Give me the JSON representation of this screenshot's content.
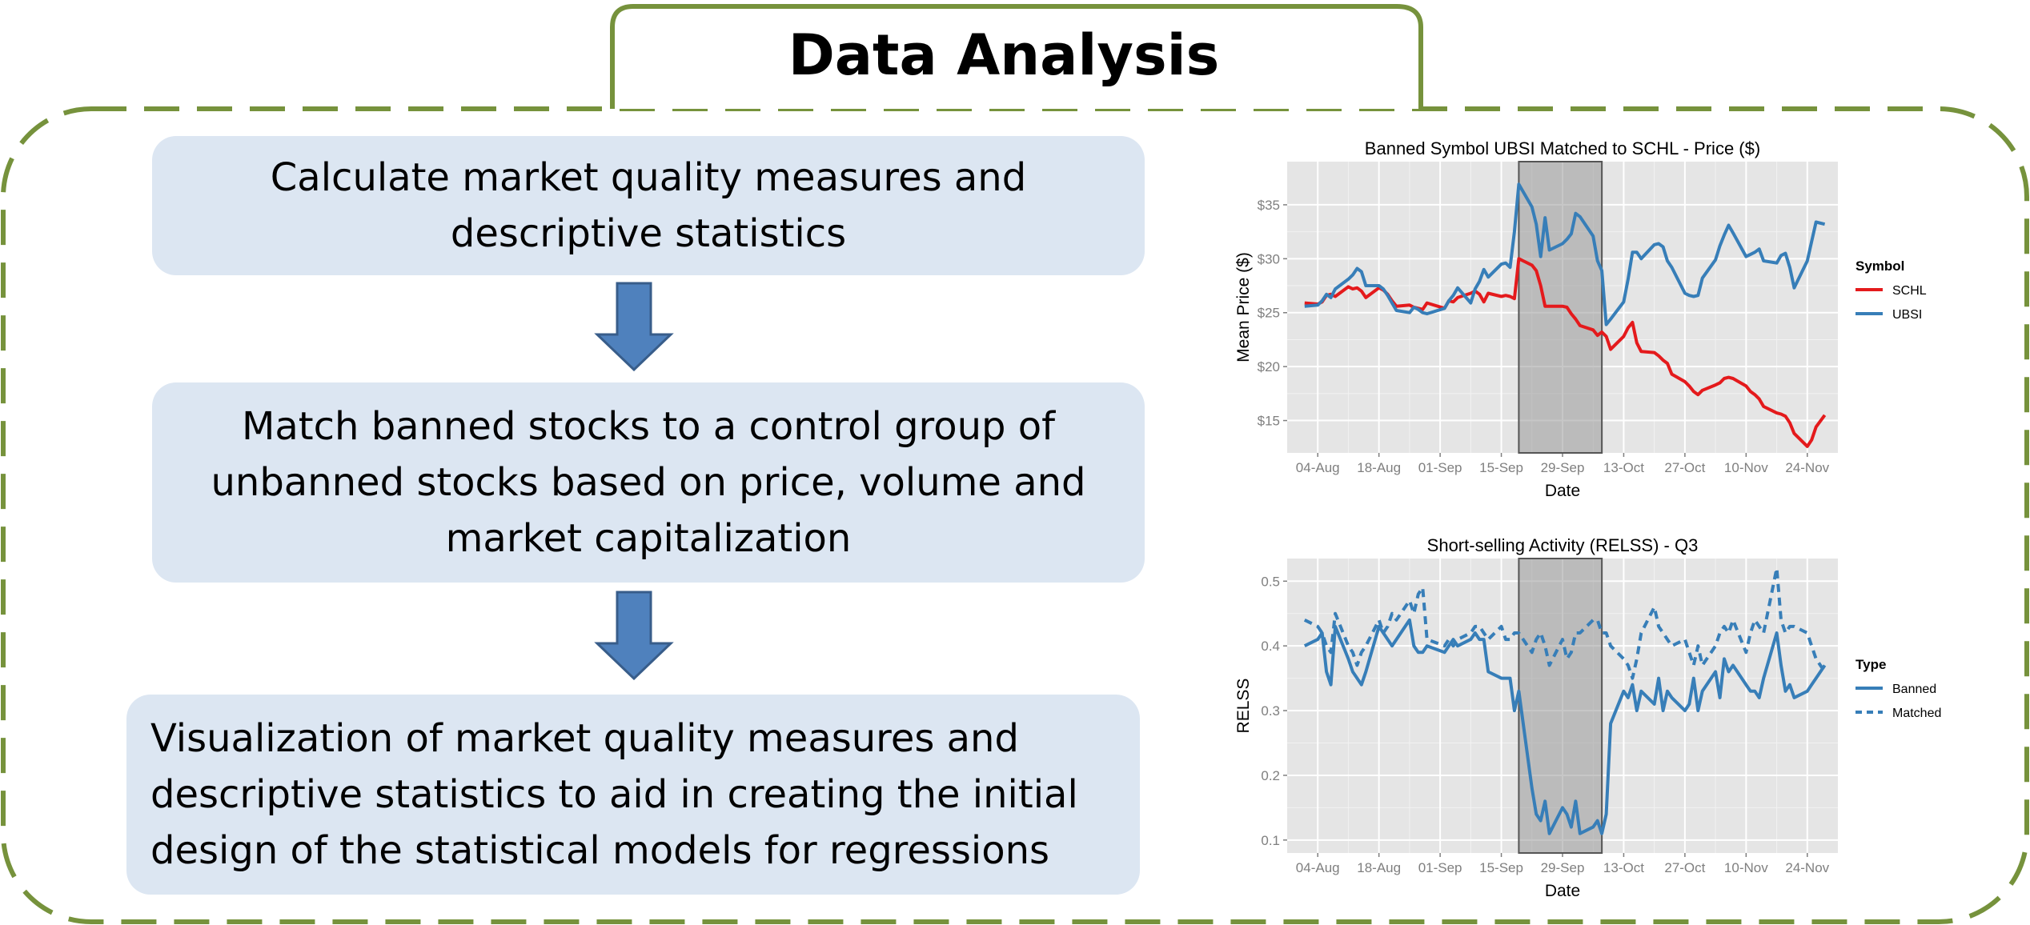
{
  "title": "Data Analysis",
  "steps": {
    "step1": "Calculate market quality measures and descriptive statistics",
    "step2": "Match banned stocks to a control group of unbanned stocks based on price, volume and market capitalization",
    "step3": "Visualization of market quality measures and descriptive statistics to aid in creating the initial design of the statistical models for regressions"
  },
  "colors": {
    "frame": "#76923c",
    "step_bg": "#dce6f2",
    "arrow_fill": "#4f81bd",
    "arrow_stroke": "#385d8a",
    "chart_bg": "#e5e5e5",
    "ban_shade": "#999999",
    "schl": "#e41a1c",
    "ubsi": "#377eb8"
  },
  "chart_data": [
    {
      "type": "line",
      "title": "Banned Symbol UBSI Matched to SCHL - Price ($)",
      "xlabel": "Date",
      "ylabel": "Mean Price ($)",
      "x_ticks": [
        "04-Aug",
        "18-Aug",
        "01-Sep",
        "15-Sep",
        "29-Sep",
        "13-Oct",
        "27-Oct",
        "10-Nov",
        "24-Nov"
      ],
      "y_ticks": [
        "$15",
        "$20",
        "$25",
        "$30",
        "$35"
      ],
      "ylim": [
        12,
        39
      ],
      "xlim": [
        "2008-07-28",
        "2008-12-01"
      ],
      "shaded_period": [
        "2008-09-19",
        "2008-10-08"
      ],
      "grid": true,
      "legend_title": "Symbol",
      "legend_position": "right",
      "x": [
        "2008-08-01",
        "2008-08-04",
        "2008-08-05",
        "2008-08-06",
        "2008-08-07",
        "2008-08-08",
        "2008-08-11",
        "2008-08-12",
        "2008-08-13",
        "2008-08-14",
        "2008-08-15",
        "2008-08-18",
        "2008-08-19",
        "2008-08-20",
        "2008-08-21",
        "2008-08-22",
        "2008-08-25",
        "2008-08-26",
        "2008-08-27",
        "2008-08-28",
        "2008-08-29",
        "2008-09-02",
        "2008-09-03",
        "2008-09-04",
        "2008-09-05",
        "2008-09-08",
        "2008-09-09",
        "2008-09-10",
        "2008-09-11",
        "2008-09-12",
        "2008-09-15",
        "2008-09-16",
        "2008-09-17",
        "2008-09-18",
        "2008-09-19",
        "2008-09-22",
        "2008-09-23",
        "2008-09-24",
        "2008-09-25",
        "2008-09-26",
        "2008-09-29",
        "2008-09-30",
        "2008-10-01",
        "2008-10-02",
        "2008-10-03",
        "2008-10-06",
        "2008-10-07",
        "2008-10-08",
        "2008-10-09",
        "2008-10-10",
        "2008-10-13",
        "2008-10-14",
        "2008-10-15",
        "2008-10-16",
        "2008-10-17",
        "2008-10-20",
        "2008-10-21",
        "2008-10-22",
        "2008-10-23",
        "2008-10-24",
        "2008-10-27",
        "2008-10-28",
        "2008-10-29",
        "2008-10-30",
        "2008-10-31",
        "2008-11-03",
        "2008-11-04",
        "2008-11-05",
        "2008-11-06",
        "2008-11-07",
        "2008-11-10",
        "2008-11-11",
        "2008-11-12",
        "2008-11-13",
        "2008-11-14",
        "2008-11-17",
        "2008-11-18",
        "2008-11-19",
        "2008-11-20",
        "2008-11-21",
        "2008-11-24",
        "2008-11-25",
        "2008-11-26",
        "2008-11-28"
      ],
      "series": [
        {
          "name": "SCHL",
          "values": [
            25.9,
            25.8,
            26.0,
            26.6,
            26.7,
            26.5,
            27.4,
            27.2,
            27.3,
            27.0,
            26.4,
            27.3,
            27.1,
            26.7,
            26.1,
            25.6,
            25.7,
            25.5,
            25.4,
            25.3,
            25.9,
            25.4,
            26.1,
            26.0,
            26.4,
            26.8,
            27.0,
            26.7,
            26.0,
            26.8,
            26.5,
            26.6,
            26.5,
            26.3,
            30.0,
            29.4,
            28.9,
            27.5,
            25.6,
            25.6,
            25.6,
            25.5,
            24.9,
            24.4,
            23.8,
            23.4,
            22.9,
            23.2,
            22.8,
            21.6,
            22.8,
            23.6,
            24.1,
            22.2,
            21.4,
            21.3,
            21.0,
            20.6,
            20.3,
            19.3,
            18.6,
            18.2,
            17.7,
            17.4,
            17.8,
            18.3,
            18.5,
            18.9,
            19.0,
            18.9,
            18.2,
            17.7,
            17.4,
            17.0,
            16.3,
            15.7,
            15.6,
            15.4,
            14.8,
            13.8,
            12.6,
            13.2,
            14.4,
            15.5
          ]
        },
        {
          "name": "UBSI",
          "values": [
            25.6,
            25.7,
            26.1,
            26.7,
            26.4,
            27.2,
            28.1,
            28.5,
            29.1,
            28.8,
            27.5,
            27.5,
            27.2,
            26.6,
            25.9,
            25.2,
            25.0,
            25.5,
            25.3,
            25.0,
            24.9,
            25.4,
            26.1,
            26.6,
            27.3,
            25.9,
            27.2,
            27.9,
            29.0,
            28.3,
            29.5,
            29.6,
            29.2,
            32.5,
            36.9,
            34.8,
            33.2,
            30.2,
            33.8,
            30.8,
            31.4,
            31.8,
            32.3,
            34.2,
            33.9,
            32.1,
            29.8,
            28.9,
            23.9,
            24.4,
            26.0,
            28.1,
            30.6,
            30.6,
            30.0,
            31.3,
            31.4,
            31.1,
            29.8,
            29.2,
            26.8,
            26.6,
            26.5,
            26.6,
            28.2,
            29.9,
            31.2,
            32.2,
            33.1,
            32.4,
            30.2,
            30.4,
            30.6,
            30.9,
            29.8,
            29.6,
            30.3,
            30.5,
            29.2,
            27.3,
            29.8,
            31.6,
            33.4,
            33.2
          ]
        }
      ]
    },
    {
      "type": "line",
      "title": "Short-selling Activity (RELSS) - Q3",
      "xlabel": "Date",
      "ylabel": "RELSS",
      "x_ticks": [
        "04-Aug",
        "18-Aug",
        "01-Sep",
        "15-Sep",
        "29-Sep",
        "13-Oct",
        "27-Oct",
        "10-Nov",
        "24-Nov"
      ],
      "y_ticks": [
        "0.1",
        "0.2",
        "0.3",
        "0.4",
        "0.5"
      ],
      "ylim": [
        0.08,
        0.535
      ],
      "xlim": [
        "2008-07-28",
        "2008-12-01"
      ],
      "shaded_period": [
        "2008-09-19",
        "2008-10-08"
      ],
      "grid": true,
      "legend_title": "Type",
      "legend_position": "right",
      "x": [
        "2008-08-01",
        "2008-08-04",
        "2008-08-05",
        "2008-08-06",
        "2008-08-07",
        "2008-08-08",
        "2008-08-11",
        "2008-08-12",
        "2008-08-13",
        "2008-08-14",
        "2008-08-15",
        "2008-08-18",
        "2008-08-19",
        "2008-08-20",
        "2008-08-21",
        "2008-08-22",
        "2008-08-25",
        "2008-08-26",
        "2008-08-27",
        "2008-08-28",
        "2008-08-29",
        "2008-09-02",
        "2008-09-03",
        "2008-09-04",
        "2008-09-05",
        "2008-09-08",
        "2008-09-09",
        "2008-09-10",
        "2008-09-11",
        "2008-09-12",
        "2008-09-15",
        "2008-09-16",
        "2008-09-17",
        "2008-09-18",
        "2008-09-19",
        "2008-09-22",
        "2008-09-23",
        "2008-09-24",
        "2008-09-25",
        "2008-09-26",
        "2008-09-29",
        "2008-09-30",
        "2008-10-01",
        "2008-10-02",
        "2008-10-03",
        "2008-10-06",
        "2008-10-07",
        "2008-10-08",
        "2008-10-09",
        "2008-10-10",
        "2008-10-13",
        "2008-10-14",
        "2008-10-15",
        "2008-10-16",
        "2008-10-17",
        "2008-10-20",
        "2008-10-21",
        "2008-10-22",
        "2008-10-23",
        "2008-10-24",
        "2008-10-27",
        "2008-10-28",
        "2008-10-29",
        "2008-10-30",
        "2008-10-31",
        "2008-11-03",
        "2008-11-04",
        "2008-11-05",
        "2008-11-06",
        "2008-11-07",
        "2008-11-10",
        "2008-11-11",
        "2008-11-12",
        "2008-11-13",
        "2008-11-14",
        "2008-11-17",
        "2008-11-18",
        "2008-11-19",
        "2008-11-20",
        "2008-11-21",
        "2008-11-24",
        "2008-11-25",
        "2008-11-26",
        "2008-11-28"
      ],
      "series": [
        {
          "name": "Banned",
          "dash": "solid",
          "values": [
            0.4,
            0.41,
            0.42,
            0.36,
            0.34,
            0.43,
            0.38,
            0.36,
            0.35,
            0.34,
            0.36,
            0.43,
            0.42,
            0.41,
            0.4,
            0.41,
            0.44,
            0.4,
            0.39,
            0.39,
            0.4,
            0.39,
            0.4,
            0.41,
            0.4,
            0.41,
            0.42,
            0.41,
            0.41,
            0.36,
            0.35,
            0.35,
            0.35,
            0.3,
            0.33,
            0.18,
            0.14,
            0.13,
            0.16,
            0.11,
            0.15,
            0.14,
            0.12,
            0.16,
            0.11,
            0.12,
            0.13,
            0.11,
            0.14,
            0.28,
            0.33,
            0.32,
            0.34,
            0.3,
            0.33,
            0.31,
            0.35,
            0.3,
            0.33,
            0.32,
            0.3,
            0.31,
            0.35,
            0.3,
            0.33,
            0.36,
            0.32,
            0.38,
            0.36,
            0.37,
            0.34,
            0.33,
            0.33,
            0.32,
            0.35,
            0.42,
            0.37,
            0.33,
            0.34,
            0.32,
            0.33,
            0.34,
            0.35,
            0.37
          ]
        },
        {
          "name": "Matched",
          "dash": "dashed",
          "values": [
            0.44,
            0.43,
            0.42,
            0.4,
            0.39,
            0.45,
            0.4,
            0.39,
            0.37,
            0.39,
            0.4,
            0.44,
            0.42,
            0.43,
            0.45,
            0.44,
            0.47,
            0.45,
            0.48,
            0.49,
            0.41,
            0.4,
            0.41,
            0.4,
            0.41,
            0.42,
            0.43,
            0.43,
            0.42,
            0.41,
            0.43,
            0.41,
            0.41,
            0.42,
            0.42,
            0.39,
            0.41,
            0.42,
            0.4,
            0.37,
            0.41,
            0.38,
            0.39,
            0.42,
            0.42,
            0.44,
            0.44,
            0.42,
            0.42,
            0.4,
            0.38,
            0.37,
            0.35,
            0.38,
            0.42,
            0.46,
            0.43,
            0.42,
            0.41,
            0.4,
            0.41,
            0.39,
            0.37,
            0.4,
            0.37,
            0.4,
            0.42,
            0.43,
            0.42,
            0.44,
            0.39,
            0.42,
            0.44,
            0.43,
            0.42,
            0.52,
            0.44,
            0.42,
            0.43,
            0.43,
            0.42,
            0.4,
            0.38,
            0.36
          ]
        }
      ]
    }
  ]
}
